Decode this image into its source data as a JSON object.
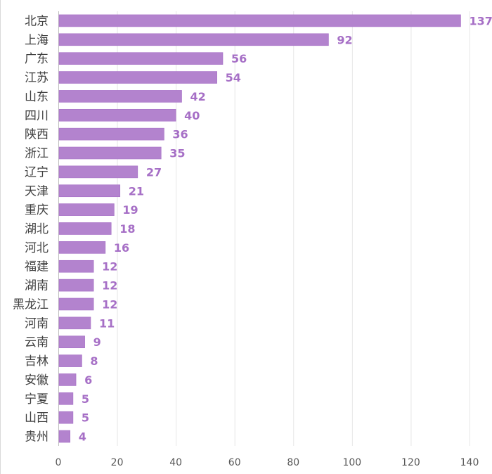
{
  "chart_data": {
    "type": "bar",
    "orientation": "horizontal",
    "categories": [
      "北京",
      "上海",
      "广东",
      "江苏",
      "山东",
      "四川",
      "陕西",
      "浙江",
      "辽宁",
      "天津",
      "重庆",
      "湖北",
      "河北",
      "福建",
      "湖南",
      "黑龙江",
      "河南",
      "云南",
      "吉林",
      "安徽",
      "宁夏",
      "山西",
      "贵州"
    ],
    "values": [
      137,
      92,
      56,
      54,
      42,
      40,
      36,
      35,
      27,
      21,
      19,
      18,
      16,
      12,
      12,
      12,
      11,
      9,
      8,
      6,
      5,
      5,
      4
    ],
    "value_labels": [
      "137",
      "92",
      "56",
      "54",
      "42",
      "40",
      "36",
      "35",
      "27",
      "21",
      "19",
      "18",
      "16",
      "12",
      "12",
      "12",
      "11",
      "9",
      "8",
      "6",
      "5",
      "5",
      "4"
    ],
    "xlim": [
      0,
      140
    ],
    "x_ticks": [
      "0",
      "20",
      "40",
      "60",
      "80",
      "100",
      "120",
      "140"
    ],
    "x_tick_values": [
      0,
      20,
      40,
      60,
      80,
      100,
      120,
      140
    ],
    "grid": "vertical",
    "legend": "none",
    "title": "",
    "xlabel": "",
    "ylabel": "",
    "colors": {
      "bar": "#b383ce",
      "bar_stroke": "#a66fc6",
      "label": "#a66fc6",
      "category_text": "#404040",
      "tick_text": "#595959",
      "grid": "#e6e6e6",
      "axis": "#bfbfbf"
    }
  }
}
